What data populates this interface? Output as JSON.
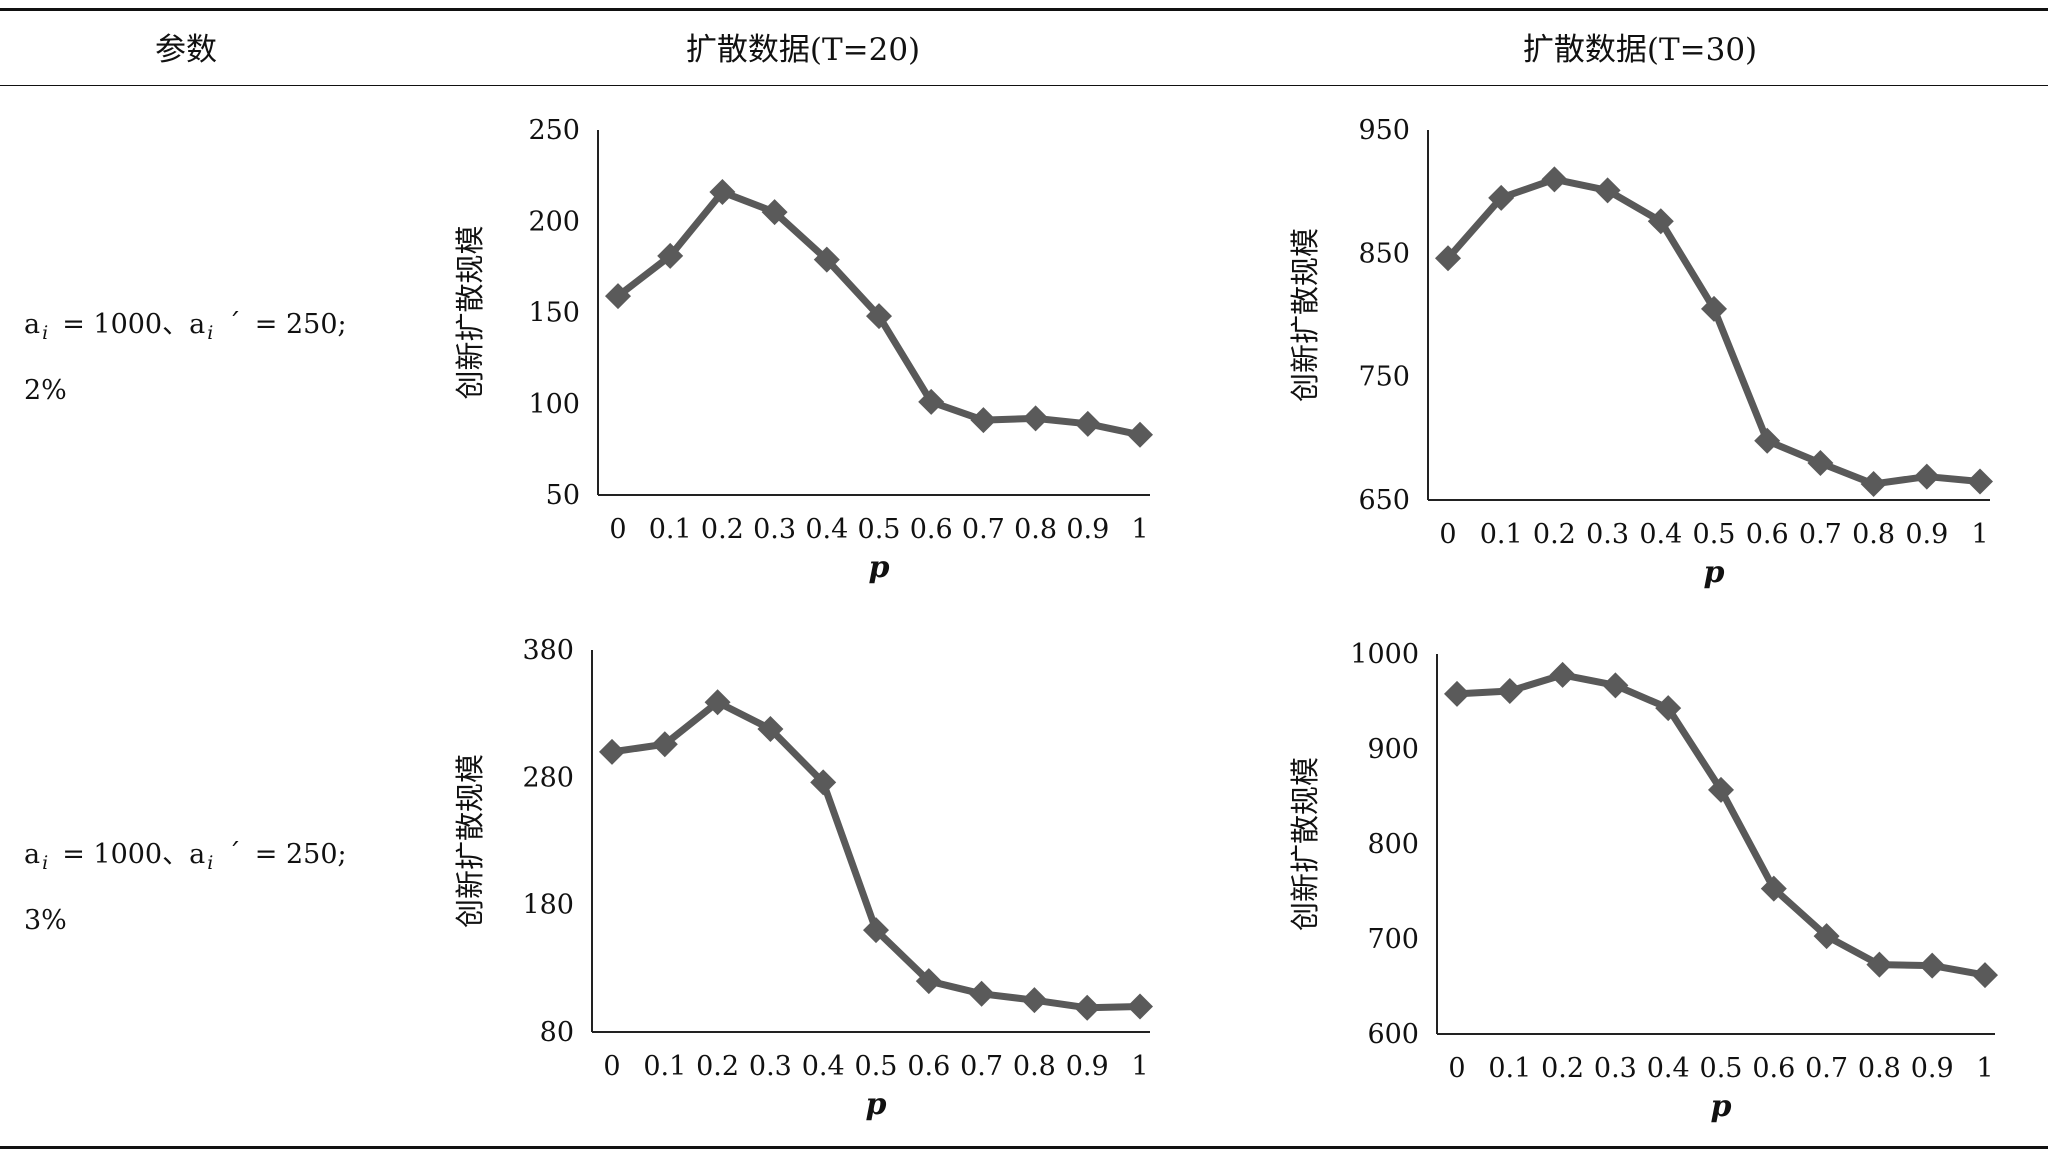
{
  "table": {
    "headers": {
      "param": "参数",
      "col1": "扩散数据(T=20)",
      "col2": "扩散数据(T=30)"
    },
    "rows": [
      {
        "param": {
          "a": "a",
          "sub": "i",
          "eq1": "= 1000",
          "sep": "、a",
          "sub2": "i",
          "prime": "´",
          "eq2": "= 250;",
          "pct": "2%"
        }
      },
      {
        "param": {
          "a": "a",
          "sub": "i",
          "eq1": "= 1000",
          "sep": "、a",
          "sub2": "i",
          "prime": "´",
          "eq2": "= 250;",
          "pct": "3%"
        }
      }
    ]
  },
  "chart_data": [
    {
      "type": "line",
      "x": [
        "0",
        "0.1",
        "0.2",
        "0.3",
        "0.4",
        "0.5",
        "0.6",
        "0.7",
        "0.8",
        "0.9",
        "1"
      ],
      "values": [
        159,
        181,
        216,
        205,
        179,
        148,
        101,
        91,
        92,
        89,
        83
      ],
      "ylim": [
        50,
        250
      ],
      "yticks": [
        "50",
        "100",
        "150",
        "200",
        "250"
      ],
      "xlabel": "p",
      "ylabel": "创新扩散规模",
      "color": "#595959"
    },
    {
      "type": "line",
      "x": [
        "0",
        "0.1",
        "0.2",
        "0.3",
        "0.4",
        "0.5",
        "0.6",
        "0.7",
        "0.8",
        "0.9",
        "1"
      ],
      "values": [
        846,
        895,
        910,
        901,
        876,
        805,
        698,
        680,
        663,
        669,
        665
      ],
      "ylim": [
        650,
        950
      ],
      "yticks": [
        "650",
        "750",
        "850",
        "950"
      ],
      "xlabel": "p",
      "ylabel": "创新扩散规模",
      "color": "#595959"
    },
    {
      "type": "line",
      "x": [
        "0",
        "0.1",
        "0.2",
        "0.3",
        "0.4",
        "0.5",
        "0.6",
        "0.7",
        "0.8",
        "0.9",
        "1"
      ],
      "values": [
        300,
        306,
        339,
        318,
        276,
        160,
        120,
        110,
        105,
        99,
        100
      ],
      "ylim": [
        80,
        380
      ],
      "yticks": [
        "80",
        "180",
        "280",
        "380"
      ],
      "xlabel": "p",
      "ylabel": "创新扩散规模",
      "color": "#595959"
    },
    {
      "type": "line",
      "x": [
        "0",
        "0.1",
        "0.2",
        "0.3",
        "0.4",
        "0.5",
        "0.6",
        "0.7",
        "0.8",
        "0.9",
        "1"
      ],
      "values": [
        958,
        961,
        978,
        967,
        943,
        857,
        753,
        703,
        673,
        672,
        662
      ],
      "ylim": [
        600,
        1000
      ],
      "yticks": [
        "600",
        "700",
        "800",
        "900",
        "1000"
      ],
      "xlabel": "p",
      "ylabel": "创新扩散规模",
      "color": "#595959"
    }
  ]
}
